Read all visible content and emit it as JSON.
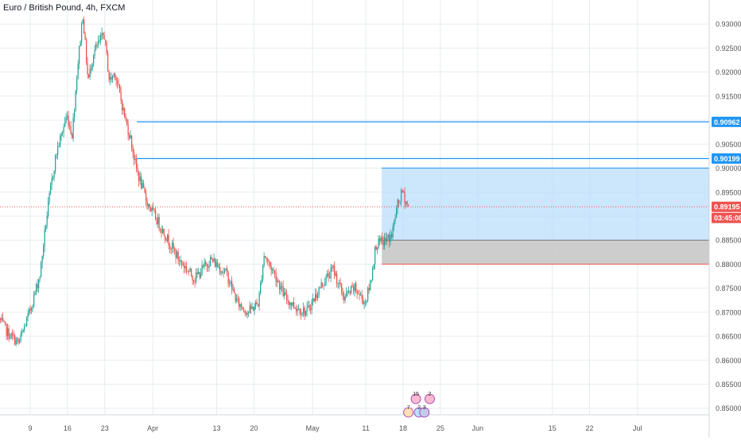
{
  "header": {
    "title": "Euro / British Pound, 4h, FXCM"
  },
  "colors": {
    "up": "#26a69a",
    "down": "#ef5350",
    "hline": "#2196f3",
    "zone_profit": "#bbdefb",
    "zone_stop": "#c4c4c4",
    "price_badge": "#ef5350",
    "level_badge": "#2196f3",
    "grid": "#e6ecf0"
  },
  "chart_data": {
    "type": "candlestick",
    "symbol": "Euro / British Pound",
    "timeframe": "4h",
    "source": "FXCM",
    "ylim": [
      0.844,
      0.935
    ],
    "y_ticks": [
      "0.93000",
      "0.92500",
      "0.92000",
      "0.91500",
      "0.91000",
      "0.90500",
      "0.90000",
      "0.89500",
      "0.89000",
      "0.88500",
      "0.88000",
      "0.87500",
      "0.87000",
      "0.86500",
      "0.86000",
      "0.85500",
      "0.85000"
    ],
    "x_ticks": [
      "9",
      "16",
      "23",
      "Apr",
      "13",
      "20",
      "May",
      "11",
      "18",
      "25",
      "Jun",
      "15",
      "22",
      "Jul"
    ],
    "x_tick_dates": [
      "2020-03-09",
      "2020-03-16",
      "2020-03-23",
      "2020-04-01",
      "2020-04-13",
      "2020-04-20",
      "2020-05-01",
      "2020-05-11",
      "2020-05-18",
      "2020-05-25",
      "2020-06-01",
      "2020-06-15",
      "2020-06-22",
      "2020-07-01"
    ],
    "price_path": [
      [
        "2020-03-02",
        0.871
      ],
      [
        "2020-03-05",
        0.8655
      ],
      [
        "2020-03-07",
        0.8635
      ],
      [
        "2020-03-09",
        0.87
      ],
      [
        "2020-03-11",
        0.878
      ],
      [
        "2020-03-12",
        0.888
      ],
      [
        "2020-03-13",
        0.896
      ],
      [
        "2020-03-14",
        0.903
      ],
      [
        "2020-03-16",
        0.911
      ],
      [
        "2020-03-17",
        0.907
      ],
      [
        "2020-03-18",
        0.921
      ],
      [
        "2020-03-19",
        0.932
      ],
      [
        "2020-03-20",
        0.918
      ],
      [
        "2020-03-21",
        0.924
      ],
      [
        "2020-03-23",
        0.928
      ],
      [
        "2020-03-24",
        0.918
      ],
      [
        "2020-03-25",
        0.92
      ],
      [
        "2020-03-27",
        0.91
      ],
      [
        "2020-03-28",
        0.906
      ],
      [
        "2020-03-29",
        0.9
      ],
      [
        "2020-03-31",
        0.893
      ],
      [
        "2020-04-03",
        0.887
      ],
      [
        "2020-04-06",
        0.881
      ],
      [
        "2020-04-09",
        0.877
      ],
      [
        "2020-04-12",
        0.881
      ],
      [
        "2020-04-15",
        0.878
      ],
      [
        "2020-04-17",
        0.872
      ],
      [
        "2020-04-19",
        0.87
      ],
      [
        "2020-04-21",
        0.872
      ],
      [
        "2020-04-22",
        0.882
      ],
      [
        "2020-04-24",
        0.878
      ],
      [
        "2020-04-26",
        0.873
      ],
      [
        "2020-04-28",
        0.871
      ],
      [
        "2020-04-30",
        0.87
      ],
      [
        "2020-05-03",
        0.876
      ],
      [
        "2020-05-05",
        0.879
      ],
      [
        "2020-05-07",
        0.873
      ],
      [
        "2020-05-09",
        0.875
      ],
      [
        "2020-05-11",
        0.872
      ],
      [
        "2020-05-12",
        0.876
      ],
      [
        "2020-05-13",
        0.884
      ],
      [
        "2020-05-15",
        0.885
      ],
      [
        "2020-05-16",
        0.886
      ],
      [
        "2020-05-17",
        0.892
      ],
      [
        "2020-05-18",
        0.895
      ],
      [
        "2020-05-19",
        0.892
      ]
    ],
    "horizontal_levels": [
      {
        "label": "0.90962",
        "value": 0.90962,
        "from": "2020-03-29"
      },
      {
        "label": "0.90199",
        "value": 0.90199,
        "from": "2020-03-29"
      }
    ],
    "position": {
      "entry": 0.885,
      "target": 0.9,
      "stop": 0.88,
      "from": "2020-05-14"
    },
    "current_price": {
      "label": "0.89195",
      "value": 0.89195,
      "countdown": "03:45:08"
    },
    "events": [
      {
        "label": "15",
        "date": "2020-05-21"
      },
      {
        "label": "2",
        "date": "2020-05-23"
      },
      {
        "label": "7",
        "date": "2020-05-19"
      },
      {
        "label": "2",
        "date": "2020-05-21"
      },
      {
        "label": "3",
        "date": "2020-05-22"
      }
    ]
  }
}
